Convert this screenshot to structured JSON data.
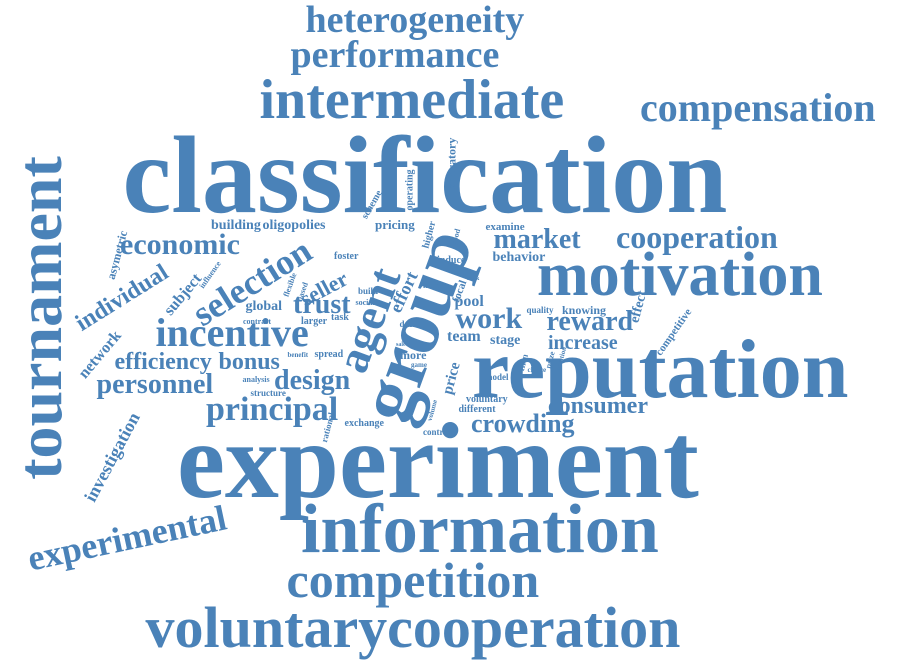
{
  "colors": {
    "word": "#4a82b8",
    "background": "#ffffff"
  },
  "words": [
    "heterogeneity",
    "performance",
    "intermediate",
    "compensation",
    "tournament",
    "classification",
    "experiment",
    "information",
    "competition",
    "voluntarycooperation",
    "reputation",
    "motivation",
    "group",
    "agent",
    "cooperation",
    "market",
    "selection",
    "economic",
    "incentive",
    "individual",
    "experimental",
    "personnel",
    "efficiency",
    "bonus",
    "principal",
    "design",
    "crowding",
    "consumer",
    "reward",
    "work",
    "increase",
    "trust",
    "seller",
    "effort",
    "building",
    "oligopolies",
    "investigation",
    "network",
    "subject",
    "asymetric",
    "team",
    "stage",
    "pool",
    "behavior",
    "examine",
    "pricing",
    "laboratory",
    "operating",
    "scheme",
    "knowing",
    "quality",
    "effect",
    "competitive",
    "global",
    "larger",
    "task",
    "contrast",
    "spread",
    "benefit",
    "analysis",
    "structure",
    "exchange",
    "rational",
    "contract",
    "different",
    "voluntary",
    "model",
    "price",
    "more",
    "data",
    "game",
    "moral",
    "induce",
    "foster",
    "higher",
    "good",
    "prize",
    "solution",
    "choice",
    "firm",
    "influence",
    "flexible",
    "based",
    "social",
    "build",
    "focal",
    "volume",
    "sale",
    "rank"
  ]
}
